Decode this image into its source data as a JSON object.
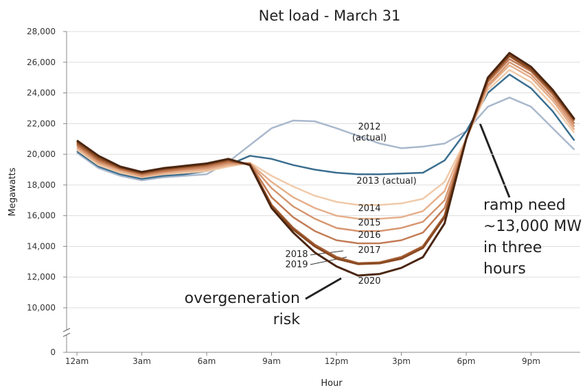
{
  "chart_data": {
    "type": "line",
    "title": "Net load - March 31",
    "xlabel": "Hour",
    "ylabel": "Megawatts",
    "x": [
      0,
      1,
      2,
      3,
      4,
      5,
      6,
      7,
      8,
      9,
      10,
      11,
      12,
      13,
      14,
      15,
      16,
      17,
      18,
      19,
      20,
      21,
      22,
      23
    ],
    "xlim": [
      0,
      23
    ],
    "xticks": [
      {
        "value": 0,
        "label": "12am"
      },
      {
        "value": 3,
        "label": "3am"
      },
      {
        "value": 6,
        "label": "6am"
      },
      {
        "value": 9,
        "label": "9am"
      },
      {
        "value": 12,
        "label": "12pm"
      },
      {
        "value": 15,
        "label": "3pm"
      },
      {
        "value": 18,
        "label": "6pm"
      },
      {
        "value": 21,
        "label": "9pm"
      }
    ],
    "ylim": [
      10000,
      28000
    ],
    "y_break": true,
    "yticks": [
      0,
      {
        "value": 10000,
        "label": "10,000"
      },
      {
        "value": 12000,
        "label": "12,000"
      },
      {
        "value": 14000,
        "label": "14,000"
      },
      {
        "value": 16000,
        "label": "16,000"
      },
      {
        "value": 18000,
        "label": "18,000"
      },
      {
        "value": 20000,
        "label": "20,000"
      },
      {
        "value": 22000,
        "label": "22,000"
      },
      {
        "value": 24000,
        "label": "24,000"
      },
      {
        "value": 26000,
        "label": "26,000"
      },
      {
        "value": 28000,
        "label": "28,000"
      }
    ],
    "grid": true,
    "series": [
      {
        "name": "2012 (actual)",
        "color": "#a9b8cc",
        "values": [
          20100,
          19100,
          18600,
          18300,
          18500,
          18600,
          18700,
          19500,
          20600,
          21700,
          22200,
          22150,
          21700,
          21200,
          20700,
          20400,
          20500,
          20700,
          21500,
          23100,
          23700,
          23100,
          21700,
          20300
        ]
      },
      {
        "name": "2013 (actual)",
        "color": "#3a6e8f",
        "values": [
          20200,
          19200,
          18700,
          18400,
          18600,
          18700,
          18900,
          19300,
          19900,
          19700,
          19300,
          19000,
          18800,
          18700,
          18700,
          18750,
          18800,
          19600,
          21500,
          24000,
          25200,
          24300,
          22800,
          20900
        ]
      },
      {
        "name": "2014",
        "color": "#f0caa9",
        "values": [
          20300,
          19300,
          18800,
          18500,
          18700,
          18800,
          18900,
          19200,
          19450,
          18600,
          17900,
          17300,
          16900,
          16700,
          16700,
          16800,
          17100,
          18200,
          21000,
          24200,
          25500,
          24700,
          23200,
          21400
        ]
      },
      {
        "name": "2015",
        "color": "#e6b08c",
        "values": [
          20400,
          19400,
          18900,
          18550,
          18750,
          18900,
          19000,
          19300,
          19400,
          18200,
          17200,
          16500,
          16000,
          15800,
          15800,
          15900,
          16300,
          17600,
          21000,
          24400,
          25800,
          25000,
          23500,
          21600
        ]
      },
      {
        "name": "2016",
        "color": "#d69670",
        "values": [
          20500,
          19500,
          19000,
          18600,
          18850,
          19000,
          19100,
          19400,
          19400,
          17800,
          16600,
          15800,
          15200,
          15000,
          15000,
          15200,
          15600,
          17000,
          21000,
          24500,
          26000,
          25200,
          23700,
          21800
        ]
      },
      {
        "name": "2017",
        "color": "#c27b55",
        "values": [
          20600,
          19600,
          19050,
          18700,
          18900,
          19050,
          19200,
          19500,
          19400,
          17200,
          15900,
          15000,
          14400,
          14200,
          14200,
          14400,
          14900,
          16500,
          21000,
          24700,
          26200,
          25400,
          23900,
          22000
        ]
      },
      {
        "name": "2018",
        "color": "#a86238",
        "values": [
          20700,
          19700,
          19100,
          18750,
          19000,
          19150,
          19300,
          19600,
          19350,
          16700,
          15200,
          14100,
          13300,
          12900,
          12950,
          13300,
          14000,
          16000,
          21000,
          24800,
          26400,
          25500,
          24000,
          22200
        ]
      },
      {
        "name": "2019",
        "color": "#8a4a22",
        "values": [
          20800,
          19800,
          19150,
          18800,
          19050,
          19200,
          19350,
          19650,
          19300,
          16600,
          15100,
          14000,
          13200,
          12850,
          12900,
          13200,
          13900,
          15900,
          21000,
          24900,
          26450,
          25550,
          24100,
          22250
        ]
      },
      {
        "name": "2020",
        "color": "#4a2510",
        "values": [
          20900,
          19900,
          19200,
          18850,
          19100,
          19250,
          19400,
          19700,
          19300,
          16500,
          14900,
          13600,
          12700,
          12100,
          12200,
          12600,
          13300,
          15500,
          21000,
          25000,
          26600,
          25700,
          24200,
          22300
        ]
      }
    ],
    "annotations": [
      {
        "lines": [
          "ramp need",
          "~13,000 MW",
          "in three hours"
        ]
      },
      {
        "lines": [
          "overgeneration",
          "risk"
        ]
      }
    ]
  }
}
